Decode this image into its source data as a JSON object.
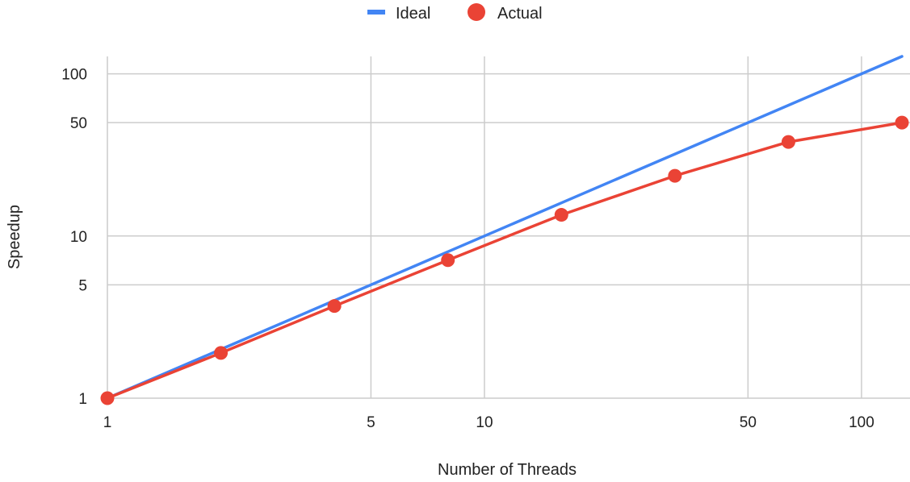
{
  "chart_data": {
    "type": "line",
    "title": "",
    "xlabel": "Number of Threads",
    "ylabel": "Speedup",
    "x_scale": "log",
    "y_scale": "log",
    "xlim": [
      1,
      128
    ],
    "ylim": [
      1,
      128
    ],
    "x_ticks": [
      1,
      5,
      10,
      50,
      100
    ],
    "x_tick_labels": [
      "1",
      "5",
      "10",
      "50",
      "100"
    ],
    "y_ticks": [
      1,
      5,
      10,
      50,
      100
    ],
    "y_tick_labels": [
      "1",
      "5",
      "10",
      "50",
      "100"
    ],
    "grid": true,
    "legend_position": "top",
    "series": [
      {
        "name": "Ideal",
        "color": "#4285f4",
        "marker": "none",
        "x": [
          1,
          2,
          4,
          8,
          16,
          32,
          64,
          128
        ],
        "y": [
          1,
          2,
          4,
          8,
          16,
          32,
          64,
          128
        ]
      },
      {
        "name": "Actual",
        "color": "#ea4335",
        "marker": "circle",
        "x": [
          1,
          2,
          4,
          8,
          16,
          32,
          64,
          128
        ],
        "y": [
          1,
          1.9,
          3.7,
          7.1,
          13.5,
          23.5,
          38,
          50
        ]
      }
    ]
  }
}
